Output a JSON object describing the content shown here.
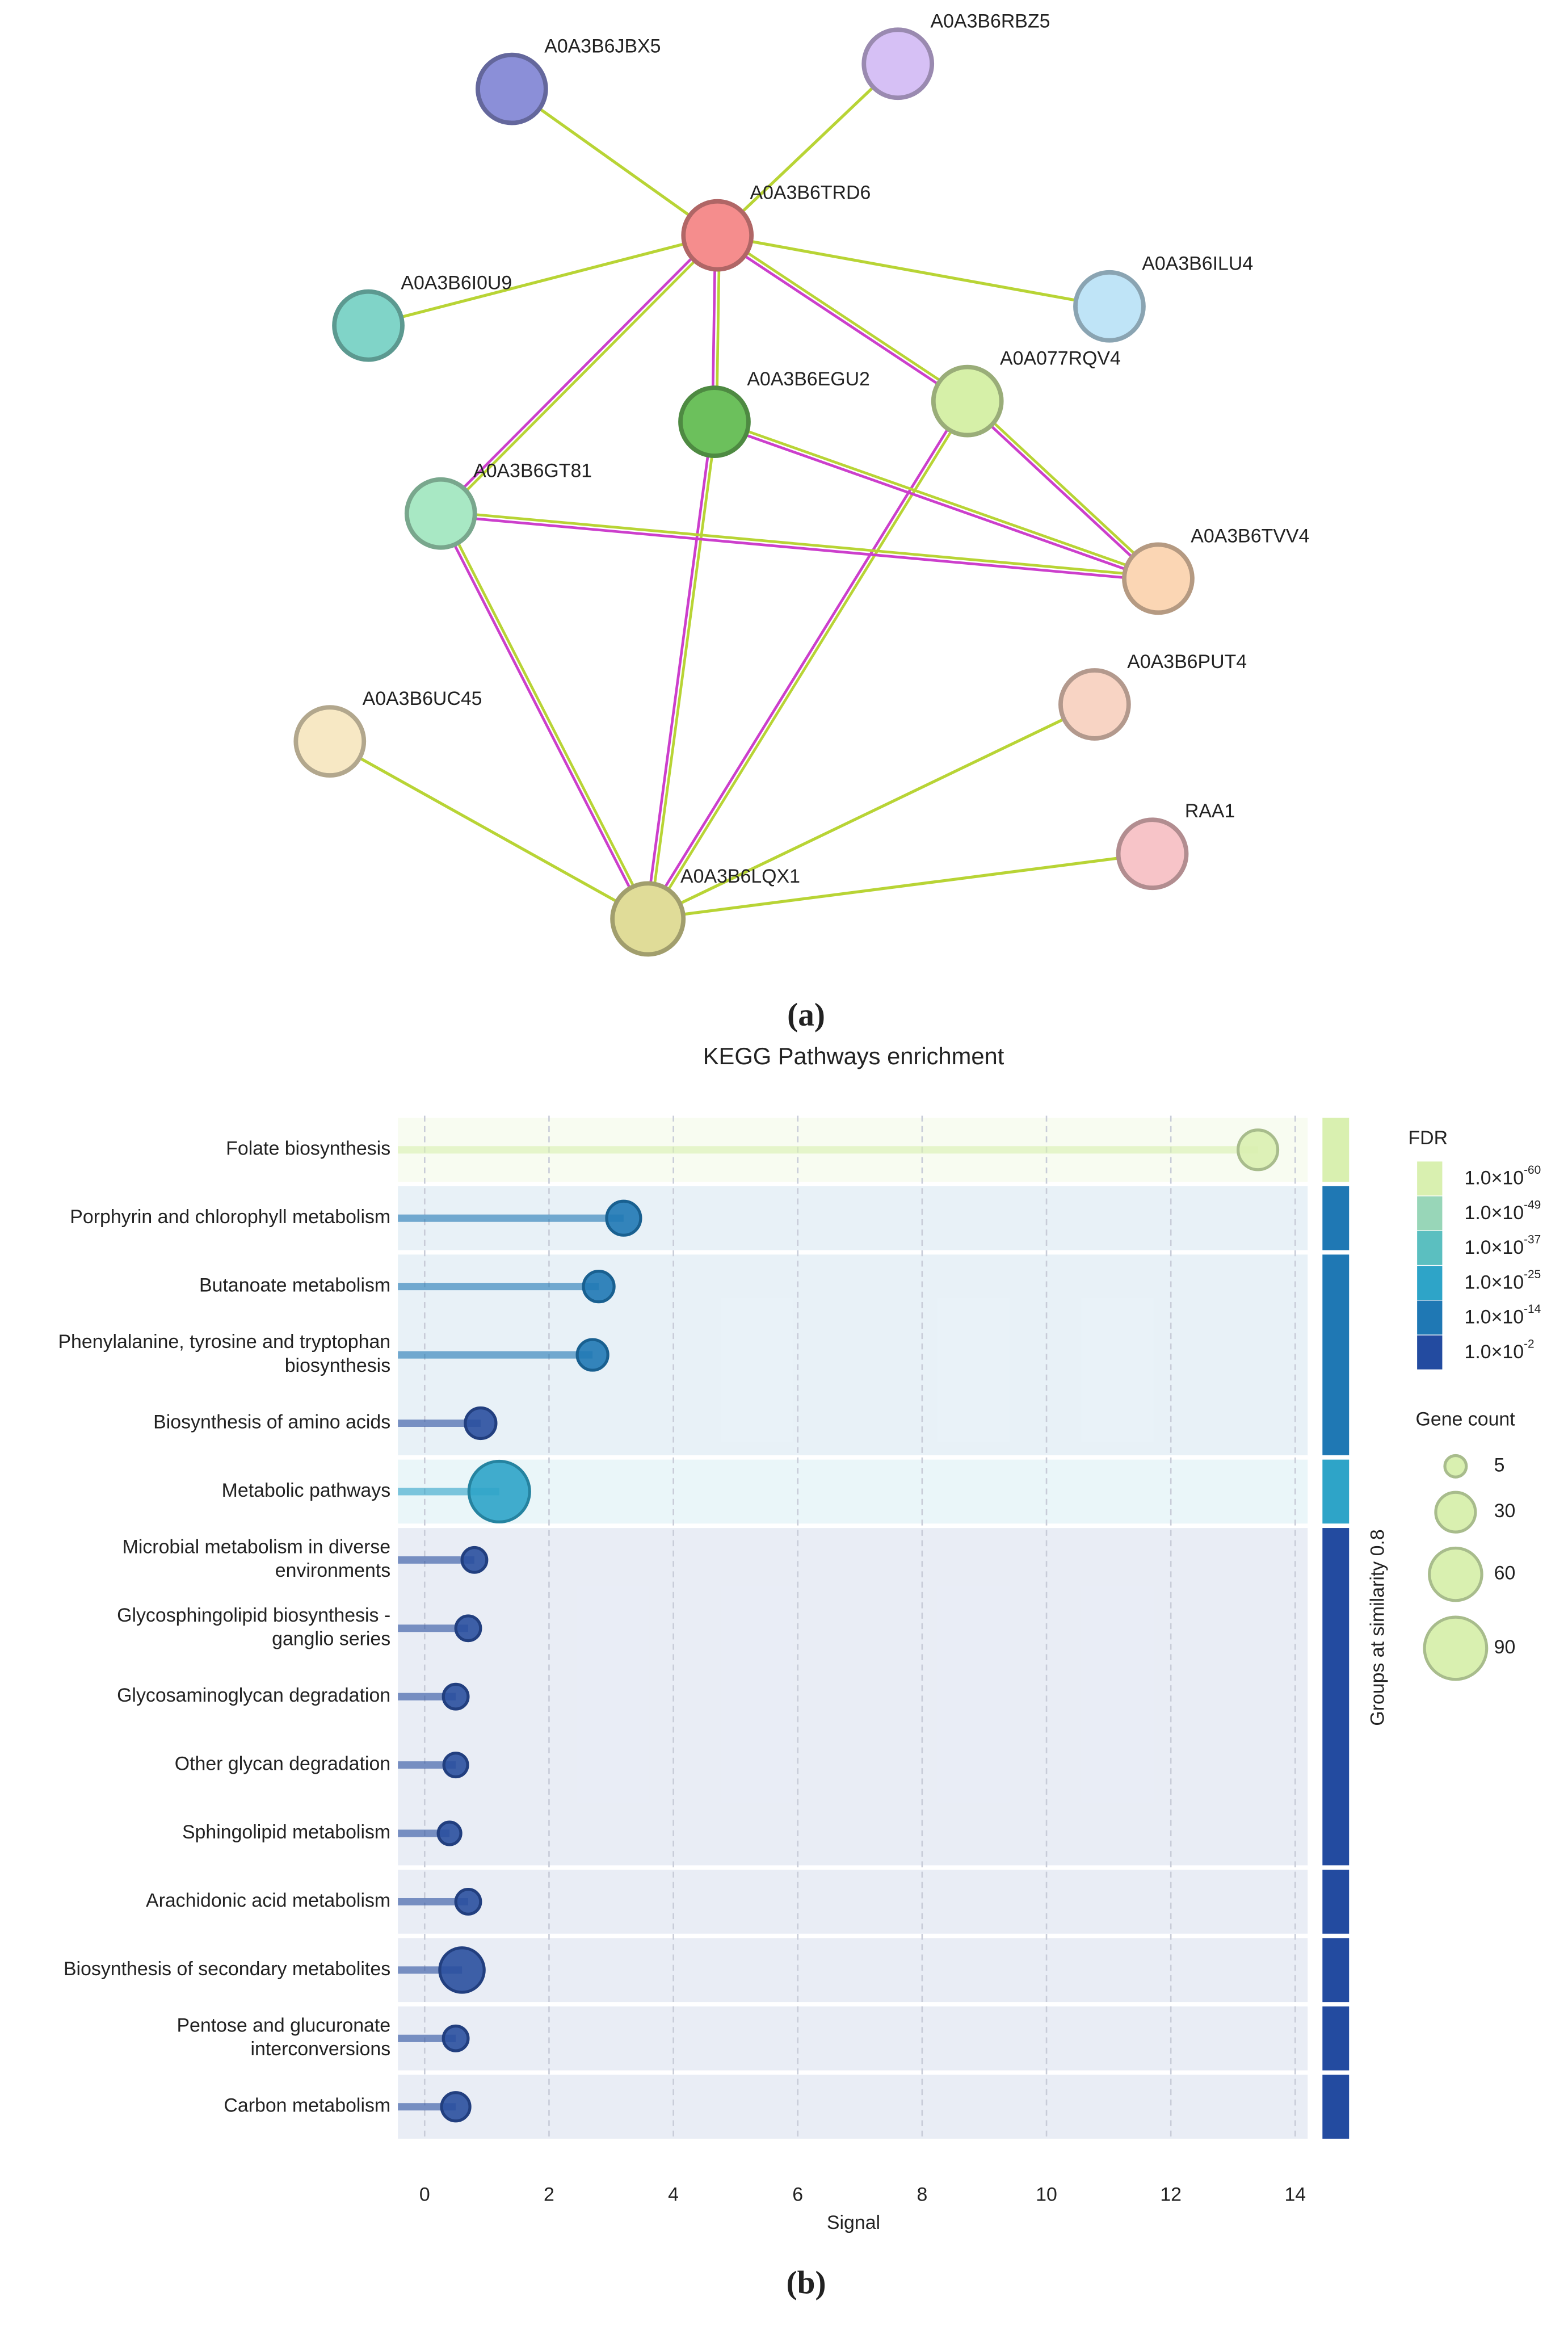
{
  "panel_labels": [
    "(a)",
    "(b)"
  ],
  "network": {
    "nodes": [
      {
        "label": "A0A3B6JBX5",
        "color": "#8b8fd8"
      },
      {
        "label": "A0A3B6RBZ5",
        "color": "#d6c0f5"
      },
      {
        "label": "A0A3B6TRD6",
        "color": "#f58d8d"
      },
      {
        "label": "A0A3B6I0U9",
        "color": "#80d4c8"
      },
      {
        "label": "A0A3B6ILU4",
        "color": "#bfe4f7"
      },
      {
        "label": "A0A3B6EGU2",
        "color": "#6cc05c"
      },
      {
        "label": "A0A077RQV4",
        "color": "#d6f0a8"
      },
      {
        "label": "A0A3B6GT81",
        "color": "#a8e8c4"
      },
      {
        "label": "A0A3B6TVV4",
        "color": "#fbd6b4"
      },
      {
        "label": "A0A3B6PUT4",
        "color": "#f8d4c4"
      },
      {
        "label": "A0A3B6UC45",
        "color": "#f7e8c4"
      },
      {
        "label": "RAA1",
        "color": "#f7c4c8"
      },
      {
        "label": "A0A3B6LQX1",
        "color": "#e0dc98"
      }
    ]
  },
  "chart_data": {
    "type": "lollipop",
    "title": "KEGG Pathways enrichment",
    "x_label": "Signal",
    "categories": [
      "Folate biosynthesis",
      "Porphyrin and chlorophyll metabolism",
      "Butanoate metabolism",
      "Phenylalanine, tyrosine and tryptophan biosynthesis",
      "Biosynthesis of amino acids",
      "Metabolic pathways",
      "Microbial metabolism in diverse environments",
      "Glycosphingolipid biosynthesis - ganglio series",
      "Glycosaminoglycan degradation",
      "Other glycan degradation",
      "Sphingolipid metabolism",
      "Arachidonic acid metabolism",
      "Biosynthesis of secondary metabolites",
      "Pentose and glucuronate interconversions",
      "Carbon metabolism"
    ],
    "values": [
      13.4,
      3.2,
      2.8,
      2.7,
      0.9,
      1.2,
      0.8,
      0.7,
      0.5,
      0.5,
      0.4,
      0.7,
      0.6,
      0.5,
      0.5
    ],
    "sizes": [
      30,
      20,
      15,
      15,
      15,
      85,
      8,
      8,
      8,
      7,
      6,
      8,
      40,
      8,
      12
    ],
    "colors": [
      "#d9f0b0",
      "#1f78b4",
      "#1f78b4",
      "#1f78b4",
      "#2a4f9f",
      "#2ea4c8",
      "#2a4f9f",
      "#2a4f9f",
      "#2a4f9f",
      "#2a4f9f",
      "#2a4f9f",
      "#2a4f9f",
      "#2a4f9f",
      "#2a4f9f",
      "#2a4f9f"
    ],
    "xlim": [
      -0.43,
      14.2
    ],
    "xticks": [
      0,
      2,
      4,
      6,
      8,
      10,
      12,
      14
    ],
    "grid": true,
    "group_label": "Groups at similarity 0.8",
    "group_sizes": [
      1,
      1,
      3,
      1,
      5,
      1,
      1,
      1,
      1
    ],
    "group_colors": [
      "#d9f0b0",
      "#1f78b4",
      "#1f78b4",
      "#2ea4c8",
      "#234ba0",
      "#234ba0",
      "#234ba0",
      "#234ba0",
      "#234ba0"
    ],
    "fdr_legend": {
      "title": "FDR",
      "items": [
        {
          "base": "1.0×10",
          "exp": "-60",
          "color": "#d9f0b0"
        },
        {
          "base": "1.0×10",
          "exp": "-49",
          "color": "#98d6b8"
        },
        {
          "base": "1.0×10",
          "exp": "-37",
          "color": "#5bbfc0"
        },
        {
          "base": "1.0×10",
          "exp": "-25",
          "color": "#2ea4c8"
        },
        {
          "base": "1.0×10",
          "exp": "-14",
          "color": "#1f78b4"
        },
        {
          "base": "1.0×10",
          "exp": "-2",
          "color": "#234ba0"
        }
      ]
    },
    "size_legend": {
      "title": "Gene count",
      "values": [
        5,
        30,
        60,
        90
      ]
    }
  }
}
